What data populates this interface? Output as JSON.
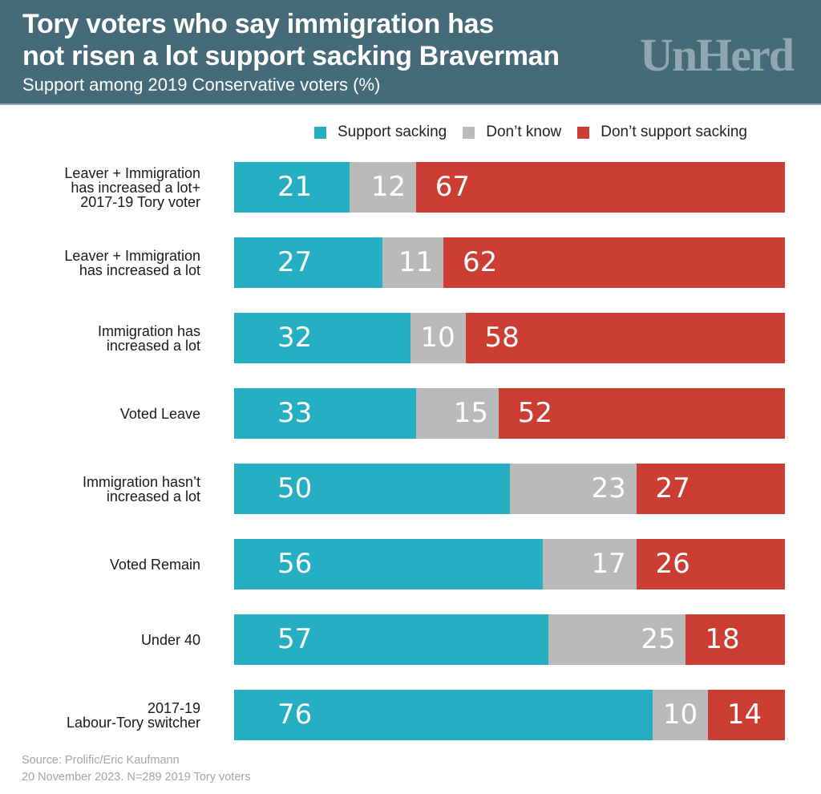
{
  "header": {
    "title_line1": "Tory voters who say immigration has",
    "title_line2": "not risen a lot support sacking Braverman",
    "subtitle": "Support among 2019 Conservative voters (%)",
    "logo": "UnHerd"
  },
  "colors": {
    "header_bg": "#456a78",
    "support": "#26afc3",
    "dont_know": "#bababa",
    "dont_support": "#cc3d33",
    "logo": "#8ea8b1"
  },
  "chart_data": {
    "type": "bar",
    "orientation": "horizontal",
    "stacked": true,
    "title": "Tory voters who say immigration has not risen a lot support sacking Braverman",
    "subtitle": "Support among 2019 Conservative voters (%)",
    "xlabel": "",
    "ylabel": "",
    "xlim": [
      0,
      100
    ],
    "grid": false,
    "legend_position": "top-right",
    "categories": [
      "Leaver + Immigration\nhas increased a lot+\n2017-19 Tory voter",
      "Leaver + Immigration\nhas increased a lot",
      "Immigration has\nincreased a lot",
      "Voted Leave",
      "Immigration hasn’t\nincreased a lot",
      "Voted Remain",
      "Under 40",
      "2017-19\nLabour-Tory switcher"
    ],
    "series": [
      {
        "name": "Support sacking",
        "color": "#26afc3",
        "values": [
          21,
          27,
          32,
          33,
          50,
          56,
          57,
          76
        ]
      },
      {
        "name": "Don’t know",
        "color": "#bababa",
        "values": [
          12,
          11,
          10,
          15,
          23,
          17,
          25,
          10
        ]
      },
      {
        "name": "Don’t support sacking",
        "color": "#cc3d33",
        "values": [
          67,
          62,
          58,
          52,
          27,
          26,
          18,
          14
        ]
      }
    ]
  },
  "footer": {
    "source_line1": "Source: Prolific/Eric Kaufmann",
    "source_line2": "20 November 2023. N=289 2019 Tory voters"
  }
}
